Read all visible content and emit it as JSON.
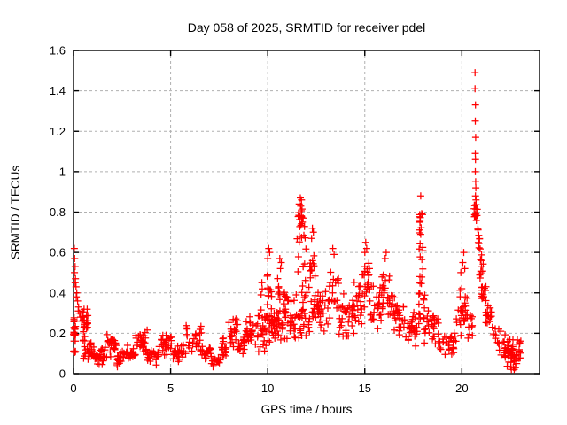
{
  "window": {
    "background": "#ffffff"
  },
  "colors": {
    "marker": "#ff0000",
    "grid": "#b0b0b0",
    "axis": "#000000",
    "text": "#000000",
    "background": "#ffffff"
  },
  "chart_data": {
    "type": "scatter",
    "marker": "plus",
    "marker_color": "#ff0000",
    "title": "Day 058 of 2025, SRMTID for receiver pdel",
    "xlabel": "GPS time / hours",
    "ylabel": "SRMTID / TECUs",
    "xlim": [
      0,
      24
    ],
    "ylim": [
      0,
      1.6
    ],
    "xticks": [
      0,
      5,
      10,
      15,
      20
    ],
    "xtick_labels": [
      "0",
      "5",
      "10",
      "15",
      "20"
    ],
    "yticks": [
      0,
      0.2,
      0.4,
      0.6,
      0.8,
      1.0,
      1.2,
      1.4,
      1.6
    ],
    "ytick_labels": [
      "0",
      "0.2",
      "0.4",
      "0.6",
      "0.8",
      "1",
      "1.2",
      "1.4",
      "1.6"
    ],
    "grid": true,
    "legend": "none",
    "notable_points": [
      [
        0.04,
        0.62
      ],
      [
        0.06,
        0.57
      ],
      [
        0.08,
        0.53
      ],
      [
        0.05,
        0.5
      ],
      [
        0.1,
        0.47
      ],
      [
        0.08,
        0.45
      ],
      [
        0.13,
        0.43
      ],
      [
        0.17,
        0.4
      ],
      [
        0.14,
        0.38
      ],
      [
        0.21,
        0.36
      ],
      [
        0.26,
        0.33
      ],
      [
        0.24,
        0.31
      ],
      [
        0.31,
        0.3
      ],
      [
        0.36,
        0.28
      ],
      [
        0.42,
        0.26
      ],
      [
        9.7,
        0.45
      ],
      [
        9.72,
        0.42
      ],
      [
        9.66,
        0.39
      ],
      [
        10.05,
        0.62
      ],
      [
        10.1,
        0.6
      ],
      [
        10.0,
        0.57
      ],
      [
        10.62,
        0.57
      ],
      [
        10.7,
        0.55
      ],
      [
        10.66,
        0.52
      ],
      [
        11.68,
        0.87
      ],
      [
        11.74,
        0.86
      ],
      [
        11.62,
        0.84
      ],
      [
        11.7,
        0.83
      ],
      [
        12.3,
        0.72
      ],
      [
        12.35,
        0.7
      ],
      [
        12.26,
        0.67
      ],
      [
        13.35,
        0.62
      ],
      [
        13.42,
        0.59
      ],
      [
        15.05,
        0.65
      ],
      [
        15.1,
        0.62
      ],
      [
        15.0,
        0.6
      ],
      [
        16.1,
        0.6
      ],
      [
        16.05,
        0.57
      ],
      [
        17.88,
        0.88
      ],
      [
        20.1,
        0.6
      ],
      [
        20.05,
        0.55
      ],
      [
        20.15,
        0.52
      ],
      [
        19.95,
        0.5
      ],
      [
        20.68,
        1.49
      ],
      [
        20.68,
        1.41
      ],
      [
        20.7,
        1.33
      ],
      [
        20.69,
        1.25
      ],
      [
        20.71,
        1.17
      ],
      [
        20.69,
        1.09
      ],
      [
        20.7,
        1.06
      ],
      [
        20.69,
        1.0
      ],
      [
        20.71,
        0.95
      ],
      [
        20.72,
        0.92
      ],
      [
        20.7,
        0.88
      ],
      [
        20.73,
        0.86
      ],
      [
        21.9,
        0.22
      ],
      [
        22.0,
        0.21
      ]
    ],
    "density_bands": [
      [
        0.0,
        0.12,
        22,
        0.1,
        0.3,
        "uniform"
      ],
      [
        0.45,
        0.75,
        24,
        0.15,
        0.35,
        "mid"
      ],
      [
        0.5,
        0.62,
        8,
        0.07,
        0.2,
        "uniform"
      ],
      [
        0.7,
        1.1,
        20,
        0.05,
        0.17,
        "mid"
      ],
      [
        1.1,
        1.6,
        24,
        0.04,
        0.13,
        "mid"
      ],
      [
        1.6,
        2.2,
        28,
        0.07,
        0.2,
        "mid"
      ],
      [
        2.2,
        2.7,
        22,
        0.03,
        0.12,
        "mid"
      ],
      [
        2.7,
        3.2,
        24,
        0.05,
        0.15,
        "mid"
      ],
      [
        3.2,
        3.8,
        26,
        0.08,
        0.22,
        "mid"
      ],
      [
        3.8,
        4.4,
        24,
        0.04,
        0.13,
        "mid"
      ],
      [
        4.4,
        5.1,
        26,
        0.08,
        0.22,
        "mid"
      ],
      [
        5.1,
        5.8,
        24,
        0.05,
        0.15,
        "mid"
      ],
      [
        5.8,
        6.6,
        28,
        0.08,
        0.26,
        "mid"
      ],
      [
        6.6,
        7.1,
        20,
        0.05,
        0.15,
        "mid"
      ],
      [
        7.1,
        7.6,
        16,
        0.02,
        0.09,
        "mid"
      ],
      [
        7.6,
        8.0,
        16,
        0.06,
        0.18,
        "mid"
      ],
      [
        8.0,
        8.45,
        20,
        0.1,
        0.29,
        "mid"
      ],
      [
        8.45,
        8.8,
        16,
        0.08,
        0.2,
        "mid"
      ],
      [
        8.8,
        9.45,
        28,
        0.12,
        0.3,
        "mid"
      ],
      [
        9.45,
        9.95,
        26,
        0.1,
        0.33,
        "mid"
      ],
      [
        9.95,
        10.2,
        14,
        0.25,
        0.55,
        "mid"
      ],
      [
        9.98,
        10.25,
        12,
        0.15,
        0.3,
        "uniform"
      ],
      [
        10.2,
        10.5,
        18,
        0.15,
        0.35,
        "mid"
      ],
      [
        10.5,
        10.9,
        18,
        0.25,
        0.5,
        "mid"
      ],
      [
        10.55,
        10.9,
        10,
        0.15,
        0.28,
        "uniform"
      ],
      [
        10.9,
        11.45,
        30,
        0.15,
        0.4,
        "mid"
      ],
      [
        11.45,
        12.0,
        14,
        0.3,
        0.62,
        "uniform"
      ],
      [
        11.55,
        11.85,
        13,
        0.72,
        0.85,
        "mid"
      ],
      [
        11.5,
        11.95,
        8,
        0.62,
        0.74,
        "uniform"
      ],
      [
        11.45,
        12.05,
        18,
        0.17,
        0.33,
        "uniform"
      ],
      [
        12.0,
        12.6,
        24,
        0.2,
        0.45,
        "mid"
      ],
      [
        12.15,
        12.5,
        12,
        0.45,
        0.65,
        "mid"
      ],
      [
        12.6,
        13.15,
        24,
        0.18,
        0.42,
        "mid"
      ],
      [
        13.15,
        13.65,
        20,
        0.25,
        0.55,
        "mid"
      ],
      [
        13.65,
        14.45,
        34,
        0.15,
        0.42,
        "mid"
      ],
      [
        14.45,
        14.85,
        20,
        0.2,
        0.48,
        "mid"
      ],
      [
        14.85,
        15.25,
        20,
        0.3,
        0.58,
        "mid"
      ],
      [
        15.25,
        15.85,
        26,
        0.2,
        0.48,
        "mid"
      ],
      [
        15.85,
        16.35,
        24,
        0.25,
        0.55,
        "mid"
      ],
      [
        16.35,
        16.7,
        16,
        0.2,
        0.45,
        "mid"
      ],
      [
        16.7,
        17.05,
        16,
        0.15,
        0.38,
        "mid"
      ],
      [
        17.05,
        17.75,
        28,
        0.12,
        0.33,
        "mid"
      ],
      [
        17.8,
        18.0,
        15,
        0.6,
        0.83,
        "uniform"
      ],
      [
        17.82,
        18.0,
        7,
        0.42,
        0.6,
        "uniform"
      ],
      [
        17.75,
        18.1,
        13,
        0.24,
        0.4,
        "uniform"
      ],
      [
        18.05,
        18.8,
        28,
        0.12,
        0.35,
        "mid"
      ],
      [
        18.8,
        19.7,
        30,
        0.07,
        0.24,
        "mid"
      ],
      [
        19.7,
        20.3,
        28,
        0.15,
        0.45,
        "mid"
      ],
      [
        20.3,
        20.55,
        9,
        0.17,
        0.3,
        "uniform"
      ],
      [
        20.62,
        20.8,
        15,
        0.74,
        0.85,
        "mid"
      ],
      [
        20.78,
        20.95,
        9,
        0.6,
        0.74,
        "uniform"
      ],
      [
        20.9,
        21.1,
        11,
        0.44,
        0.6,
        "uniform"
      ],
      [
        21.0,
        21.25,
        16,
        0.32,
        0.45,
        "mid"
      ],
      [
        21.2,
        21.55,
        14,
        0.24,
        0.36,
        "mid"
      ],
      [
        21.55,
        21.8,
        6,
        0.15,
        0.24,
        "uniform"
      ],
      [
        21.8,
        23.05,
        55,
        0.05,
        0.2,
        "mid"
      ],
      [
        22.3,
        22.85,
        11,
        0.02,
        0.07,
        "uniform"
      ]
    ]
  }
}
